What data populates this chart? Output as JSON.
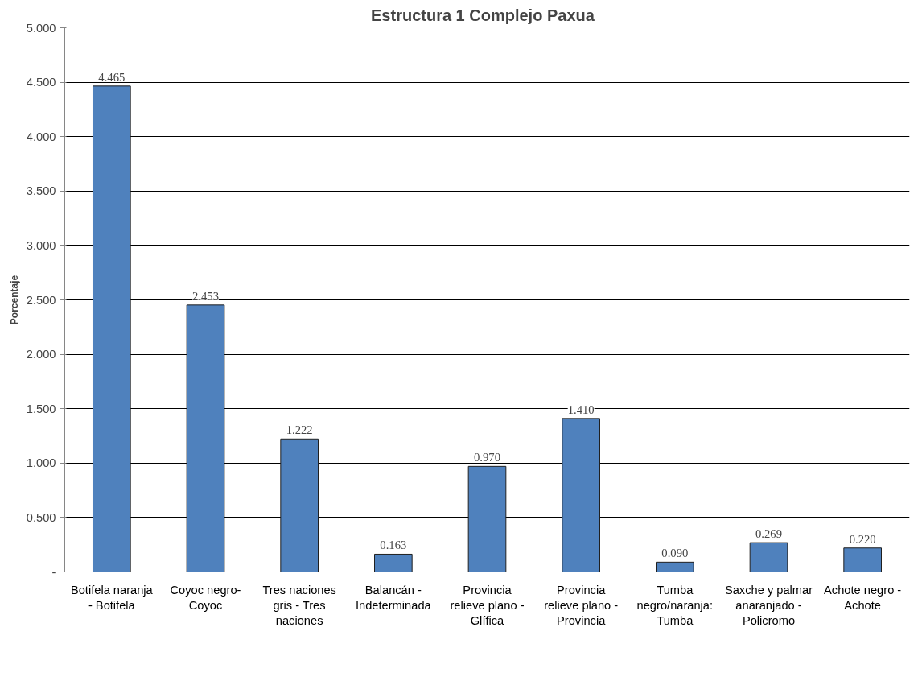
{
  "chart_data": {
    "type": "bar",
    "title": "Estructura 1   Complejo Paxua",
    "ylabel": "Porcentaje",
    "categories": [
      "Botifela naranja - Botifela",
      "Coyoc negro- Coyoc",
      "Tres naciones gris - Tres naciones",
      "Balancán - Indeterminada",
      "Provincia relieve plano - Glífica",
      "Provincia relieve plano - Provincia",
      "Tumba negro/naranja: Tumba",
      "Saxche y palmar anaranjado - Policromo",
      "Achote negro - Achote"
    ],
    "values": [
      4.465,
      2.453,
      1.222,
      0.163,
      0.97,
      1.41,
      0.09,
      0.269,
      0.22
    ],
    "value_labels": [
      "4.465",
      "2.453",
      "1.222",
      "0.163",
      "0.970",
      "1.410",
      "0.090",
      "0.269",
      "0.220"
    ],
    "color": "#4f81bd",
    "ylim": [
      0,
      5
    ],
    "yticks": [
      {
        "value": 0,
        "label": "-"
      },
      {
        "value": 0.5,
        "label": "0.500"
      },
      {
        "value": 1,
        "label": "1.000"
      },
      {
        "value": 1.5,
        "label": "1.500"
      },
      {
        "value": 2,
        "label": "2.000"
      },
      {
        "value": 2.5,
        "label": "2.500"
      },
      {
        "value": 3,
        "label": "3.000"
      },
      {
        "value": 3.5,
        "label": "3.500"
      },
      {
        "value": 4,
        "label": "4.000"
      },
      {
        "value": 4.5,
        "label": "4.500"
      },
      {
        "value": 5,
        "label": "5.000"
      }
    ],
    "grid": "y"
  }
}
